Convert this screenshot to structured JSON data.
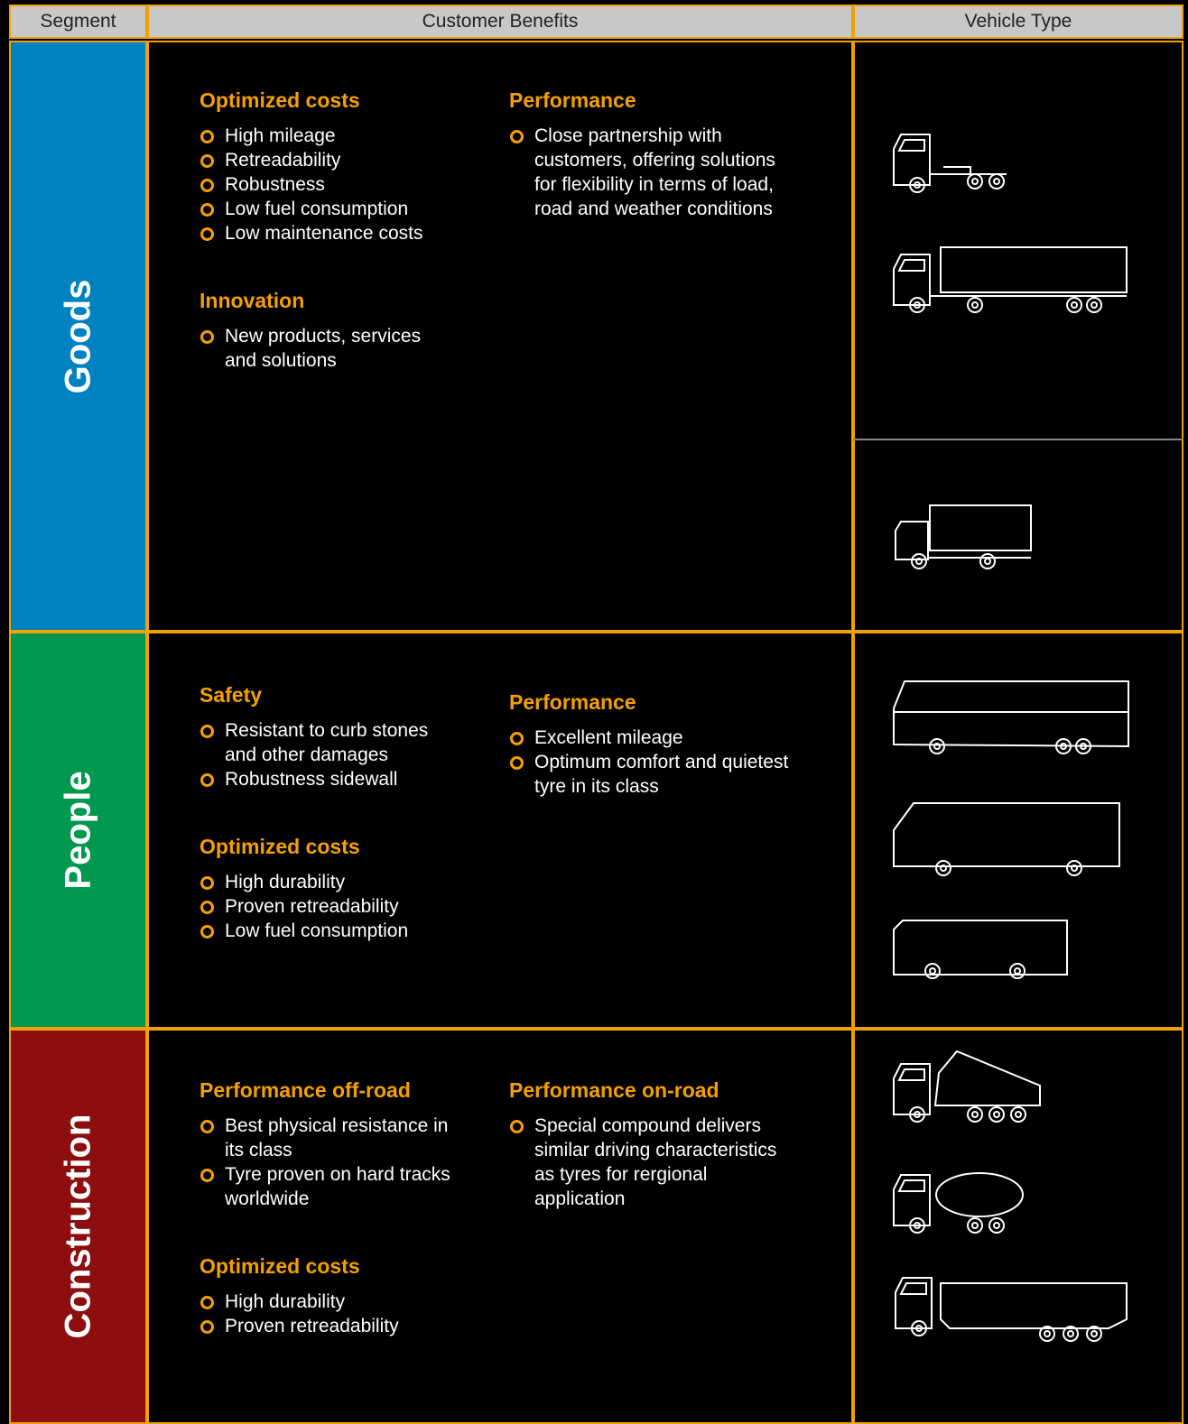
{
  "header": {
    "segment": "Segment",
    "benefits": "Customer Benefits",
    "vehicle": "Vehicle Type"
  },
  "segments": [
    {
      "name": "Goods",
      "columns": [
        [
          {
            "title": "Optimized costs",
            "items": [
              "High mileage",
              "Retreadability",
              "Robustness",
              "Low fuel consumption",
              "Low maintenance costs"
            ]
          },
          {
            "title": "Innovation",
            "items": [
              "New products, services and solutions"
            ]
          }
        ],
        [
          {
            "title": "Performance",
            "items": [
              "Close partnership with customers, offering solutions for flexibility in terms of load, road and weather conditions"
            ]
          }
        ]
      ]
    },
    {
      "name": "People",
      "columns": [
        [
          {
            "title": "Safety",
            "items": [
              "Resistant to curb stones and other damages",
              "Robustness sidewall"
            ]
          },
          {
            "title": "Optimized costs",
            "items": [
              "High durability",
              "Proven retreadability",
              "Low fuel consumption"
            ]
          }
        ],
        [
          {
            "title": "Performance",
            "items": [
              "Excellent mileage",
              "Optimum comfort and quietest tyre in its class"
            ]
          }
        ]
      ]
    },
    {
      "name": "Construction",
      "columns": [
        [
          {
            "title": "Performance off-road",
            "items": [
              "Best physical resistance in its class",
              "Tyre proven on hard tracks worldwide"
            ]
          },
          {
            "title": "Optimized costs",
            "items": [
              "High durability",
              "Proven retreadability"
            ]
          }
        ],
        [
          {
            "title": "Performance on-road",
            "items": [
              "Special compound delivers similar driving characteristics as tyres for rergional application"
            ]
          }
        ]
      ]
    }
  ]
}
